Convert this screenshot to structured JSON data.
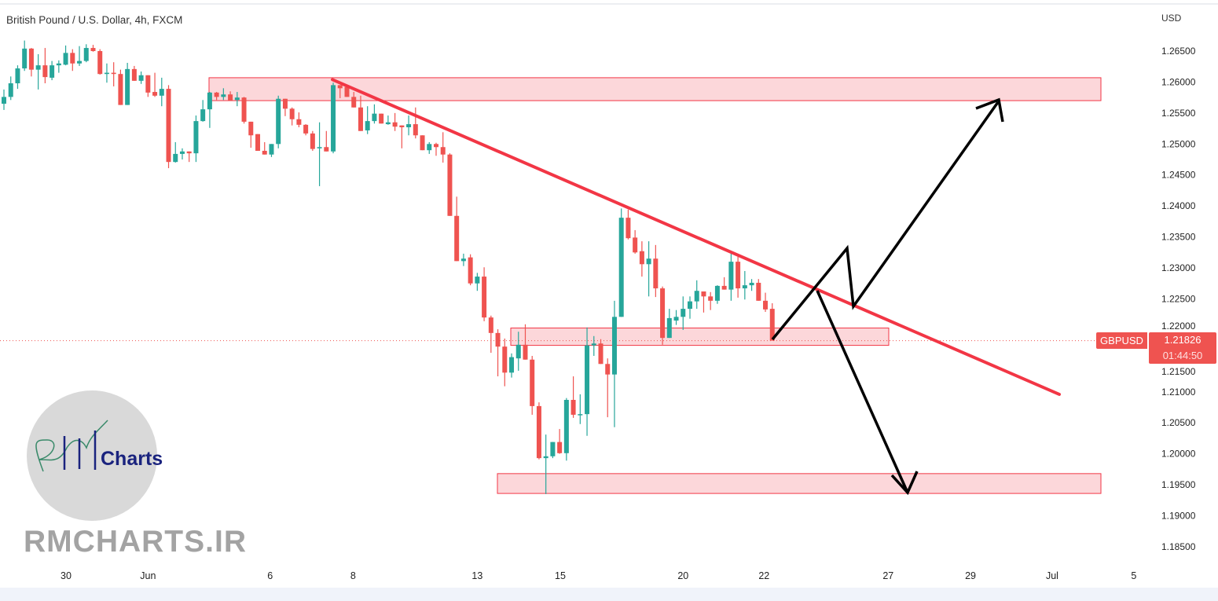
{
  "header": {
    "title": "British Pound / U.S. Dollar, 4h, FXCM",
    "currency": "USD"
  },
  "badge": {
    "symbol": "GBPUSD",
    "price": "1.21826",
    "countdown": "01:44:50"
  },
  "watermark": {
    "logo_text": "Charts",
    "site": "RMCHARTS.IR"
  },
  "colors": {
    "up": "#26a69a",
    "down": "#ef5350",
    "zone": "#f23645",
    "trendline": "#f23645",
    "arrows": "#000000",
    "logo_bg": "#d9d9d9",
    "logo_text": "#1a237e"
  },
  "chart_data": {
    "type": "candlestick",
    "title": "British Pound / U.S. Dollar, 4h, FXCM",
    "ylabel": "USD",
    "ylim": [
      1.1825,
      1.2695
    ],
    "yticks": [
      "1.26500",
      "1.26000",
      "1.25500",
      "1.25000",
      "1.24500",
      "1.24000",
      "1.23500",
      "1.23000",
      "1.22500",
      "1.22000",
      "1.21500",
      "1.21000",
      "1.20500",
      "1.20000",
      "1.19500",
      "1.19000",
      "1.18500"
    ],
    "xticks": [
      "30",
      "Jun",
      "6",
      "8",
      "13",
      "15",
      "20",
      "22",
      "27",
      "29",
      "Jul",
      "5"
    ],
    "last_price": 1.21826,
    "candles_ohlc": [
      [
        1.2565,
        1.2588,
        1.2555,
        1.2576
      ],
      [
        1.2576,
        1.2609,
        1.2571,
        1.2598
      ],
      [
        1.2598,
        1.2627,
        1.2589,
        1.2622
      ],
      [
        1.2622,
        1.2667,
        1.2618,
        1.2654
      ],
      [
        1.2654,
        1.2655,
        1.2609,
        1.262
      ],
      [
        1.262,
        1.2645,
        1.2588,
        1.2627
      ],
      [
        1.2627,
        1.2655,
        1.2598,
        1.2608
      ],
      [
        1.2607,
        1.2634,
        1.2603,
        1.2627
      ],
      [
        1.2627,
        1.2635,
        1.2615,
        1.263
      ],
      [
        1.2628,
        1.2659,
        1.2627,
        1.2647
      ],
      [
        1.2647,
        1.2653,
        1.2618,
        1.263
      ],
      [
        1.263,
        1.2658,
        1.2626,
        1.2634
      ],
      [
        1.2634,
        1.2661,
        1.2632,
        1.2655
      ],
      [
        1.2655,
        1.266,
        1.2649,
        1.265
      ],
      [
        1.265,
        1.2653,
        1.2612,
        1.2613
      ],
      [
        1.2613,
        1.263,
        1.2599,
        1.2615
      ],
      [
        1.2615,
        1.2632,
        1.2593,
        1.2613
      ],
      [
        1.2613,
        1.262,
        1.2563,
        1.2563
      ],
      [
        1.2563,
        1.2631,
        1.2563,
        1.2621
      ],
      [
        1.2621,
        1.2626,
        1.2602,
        1.2602
      ],
      [
        1.2602,
        1.2617,
        1.2597,
        1.2611
      ],
      [
        1.2611,
        1.2611,
        1.2576,
        1.2583
      ],
      [
        1.2584,
        1.2615,
        1.2576,
        1.2578
      ],
      [
        1.2578,
        1.2607,
        1.2561,
        1.2589
      ],
      [
        1.2589,
        1.2595,
        1.2461,
        1.2471
      ],
      [
        1.2471,
        1.2503,
        1.247,
        1.2484
      ],
      [
        1.2484,
        1.2493,
        1.2475,
        1.2488
      ],
      [
        1.2488,
        1.2488,
        1.2471,
        1.2485
      ],
      [
        1.2485,
        1.2546,
        1.2471,
        1.2537
      ],
      [
        1.2537,
        1.2571,
        1.2536,
        1.2556
      ],
      [
        1.2556,
        1.2584,
        1.2526,
        1.2583
      ],
      [
        1.2583,
        1.2584,
        1.2571,
        1.2576
      ],
      [
        1.2576,
        1.259,
        1.2571,
        1.258
      ],
      [
        1.258,
        1.2585,
        1.257,
        1.257
      ],
      [
        1.2571,
        1.2584,
        1.2561,
        1.2575
      ],
      [
        1.2575,
        1.2576,
        1.2533,
        1.2536
      ],
      [
        1.2536,
        1.2536,
        1.2494,
        1.2514
      ],
      [
        1.2516,
        1.2516,
        1.2489,
        1.2489
      ],
      [
        1.2489,
        1.2503,
        1.2483,
        1.2483
      ],
      [
        1.2483,
        1.25,
        1.2479,
        1.25
      ],
      [
        1.25,
        1.2578,
        1.2493,
        1.2573
      ],
      [
        1.2573,
        1.2573,
        1.2545,
        1.2557
      ],
      [
        1.2557,
        1.2559,
        1.253,
        1.254
      ],
      [
        1.254,
        1.2551,
        1.2527,
        1.2531
      ],
      [
        1.2531,
        1.2532,
        1.2514,
        1.2517
      ],
      [
        1.2517,
        1.2521,
        1.2489,
        1.2492
      ],
      [
        1.2493,
        1.2535,
        1.2432,
        1.2495
      ],
      [
        1.2495,
        1.2521,
        1.2488,
        1.2488
      ],
      [
        1.2488,
        1.2599,
        1.2485,
        1.2595
      ],
      [
        1.2595,
        1.2595,
        1.2574,
        1.259
      ],
      [
        1.2592,
        1.2595,
        1.2576,
        1.2576
      ],
      [
        1.2576,
        1.2584,
        1.2559,
        1.2559
      ],
      [
        1.2559,
        1.2578,
        1.2521,
        1.2521
      ],
      [
        1.2522,
        1.2561,
        1.2516,
        1.2537
      ],
      [
        1.2537,
        1.2564,
        1.2533,
        1.2549
      ],
      [
        1.2549,
        1.2549,
        1.2533,
        1.2533
      ],
      [
        1.2532,
        1.2546,
        1.2531,
        1.2535
      ],
      [
        1.2535,
        1.255,
        1.2521,
        1.2528
      ],
      [
        1.253,
        1.253,
        1.2493,
        1.2527
      ],
      [
        1.2527,
        1.2546,
        1.2514,
        1.2532
      ],
      [
        1.2532,
        1.2559,
        1.2509,
        1.2514
      ],
      [
        1.2514,
        1.2514,
        1.249,
        1.249
      ],
      [
        1.249,
        1.2503,
        1.2484,
        1.25
      ],
      [
        1.25,
        1.2502,
        1.2481,
        1.2495
      ],
      [
        1.2495,
        1.2519,
        1.247,
        1.2483
      ],
      [
        1.2483,
        1.2485,
        1.2384,
        1.2384
      ],
      [
        1.2384,
        1.2415,
        1.2311,
        1.2311
      ],
      [
        1.2311,
        1.2323,
        1.2303,
        1.2315
      ],
      [
        1.2317,
        1.2322,
        1.2272,
        1.2275
      ],
      [
        1.2275,
        1.2292,
        1.2263,
        1.2286
      ],
      [
        1.2286,
        1.2301,
        1.2214,
        1.222
      ],
      [
        1.222,
        1.2223,
        1.2163,
        1.2195
      ],
      [
        1.2195,
        1.2201,
        1.2125,
        1.2173
      ],
      [
        1.2173,
        1.2186,
        1.2109,
        1.2131
      ],
      [
        1.2131,
        1.2162,
        1.2123,
        1.2156
      ],
      [
        1.2154,
        1.2197,
        1.2134,
        1.2176
      ],
      [
        1.2176,
        1.2209,
        1.2152,
        1.2152
      ],
      [
        1.2152,
        1.2158,
        1.2063,
        1.2077
      ],
      [
        1.2077,
        1.2083,
        1.1991,
        1.1993
      ],
      [
        1.1993,
        1.2031,
        1.1935,
        1.1996
      ],
      [
        1.1996,
        1.2019,
        1.1993,
        1.2019
      ],
      [
        1.2019,
        1.204,
        1.2,
        1.2001
      ],
      [
        1.2001,
        1.209,
        1.1989,
        1.2087
      ],
      [
        1.2087,
        1.2125,
        1.2058,
        1.2063
      ],
      [
        1.2063,
        1.2096,
        1.2048,
        1.2064
      ],
      [
        1.2064,
        1.2204,
        1.2029,
        1.2175
      ],
      [
        1.2175,
        1.219,
        1.2158,
        1.2178
      ],
      [
        1.2178,
        1.2185,
        1.2145,
        1.2145
      ],
      [
        1.2145,
        1.2154,
        1.2059,
        1.2128
      ],
      [
        1.2128,
        1.2247,
        1.2043,
        1.2221
      ],
      [
        1.2221,
        1.2396,
        1.2221,
        1.2381
      ],
      [
        1.2381,
        1.2394,
        1.2346,
        1.2348
      ],
      [
        1.2349,
        1.2361,
        1.2323,
        1.2325
      ],
      [
        1.2327,
        1.2343,
        1.2286,
        1.2306
      ],
      [
        1.2306,
        1.2343,
        1.2254,
        1.2315
      ],
      [
        1.2315,
        1.2337,
        1.2253,
        1.2267
      ],
      [
        1.2267,
        1.227,
        1.2176,
        1.2187
      ],
      [
        1.2187,
        1.2234,
        1.2187,
        1.2219
      ],
      [
        1.2215,
        1.2232,
        1.2208,
        1.2221
      ],
      [
        1.2221,
        1.2254,
        1.22,
        1.2234
      ],
      [
        1.2234,
        1.2254,
        1.2218,
        1.2246
      ],
      [
        1.2246,
        1.228,
        1.2234,
        1.2263
      ],
      [
        1.2262,
        1.2262,
        1.2228,
        1.2254
      ],
      [
        1.2254,
        1.2261,
        1.2232,
        1.2247
      ],
      [
        1.2247,
        1.2272,
        1.2242,
        1.2271
      ],
      [
        1.2271,
        1.2285,
        1.2265,
        1.2265
      ],
      [
        1.2265,
        1.2323,
        1.2247,
        1.231
      ],
      [
        1.231,
        1.2318,
        1.2252,
        1.2267
      ],
      [
        1.2267,
        1.2295,
        1.2249,
        1.2272
      ],
      [
        1.2272,
        1.2282,
        1.2263,
        1.2276
      ],
      [
        1.2276,
        1.2282,
        1.2247,
        1.2247
      ],
      [
        1.2247,
        1.226,
        1.2229,
        1.2233
      ],
      [
        1.2234,
        1.2243,
        1.2183,
        1.21826
      ]
    ],
    "zones": [
      {
        "top": 1.2607,
        "bottom": 1.257
      },
      {
        "top": 1.2203,
        "bottom": 1.2175
      },
      {
        "top": 1.1968,
        "bottom": 1.1936
      }
    ],
    "trendline": {
      "from_price": 1.2604,
      "to_price": 1.2096
    }
  }
}
